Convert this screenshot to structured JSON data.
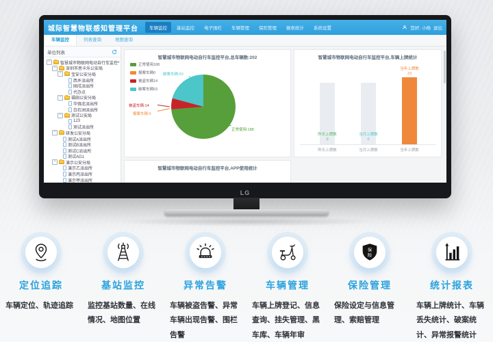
{
  "monitor": {
    "brand": "LG"
  },
  "dashboard": {
    "header": {
      "title": "城际智慧物联感知管理平台",
      "nav": [
        {
          "label": "车辆监控",
          "active": true
        },
        {
          "label": "基站监控",
          "active": false
        },
        {
          "label": "电子围栏",
          "active": false
        },
        {
          "label": "车辆管理",
          "active": false
        },
        {
          "label": "保险管理",
          "active": false
        },
        {
          "label": "报表统计",
          "active": false
        },
        {
          "label": "系统设置",
          "active": false
        }
      ],
      "user_greeting": "您好, 小杨",
      "logout_label": "退出"
    },
    "tabs": [
      {
        "label": "车辆监控",
        "active": true
      },
      {
        "label": "列表查询",
        "active": false
      },
      {
        "label": "地图查询",
        "active": false
      }
    ],
    "sidebar": {
      "title": "单位列表",
      "tree": [
        {
          "label": "智慧城市物联网电动自行车监控平台",
          "level": 0,
          "type": "folder"
        },
        {
          "label": "深圳市思卡乐公安局",
          "level": 1,
          "type": "folder"
        },
        {
          "label": "宝安公安分局",
          "level": 2,
          "type": "folder"
        },
        {
          "label": "西乡派出所",
          "level": 3,
          "type": "leaf"
        },
        {
          "label": "固戍派出所",
          "level": 3,
          "type": "leaf"
        },
        {
          "label": "代办点",
          "level": 3,
          "type": "leaf"
        },
        {
          "label": "福田公安分局",
          "level": 2,
          "type": "folder"
        },
        {
          "label": "华强北派出所",
          "level": 3,
          "type": "leaf"
        },
        {
          "label": "白石洲派出所",
          "level": 3,
          "type": "leaf"
        },
        {
          "label": "测试公安局",
          "level": 2,
          "type": "folder"
        },
        {
          "label": "123",
          "level": 3,
          "type": "leaf"
        },
        {
          "label": "测试派出所",
          "level": 3,
          "type": "leaf"
        },
        {
          "label": "研发公安分局",
          "level": 1,
          "type": "folder"
        },
        {
          "label": "测试A派出所",
          "level": 2,
          "type": "leaf"
        },
        {
          "label": "测试B派出所",
          "level": 2,
          "type": "leaf"
        },
        {
          "label": "测试C派出所",
          "level": 2,
          "type": "leaf"
        },
        {
          "label": "测试AG1",
          "level": 2,
          "type": "leaf"
        },
        {
          "label": "演示公安分局",
          "level": 1,
          "type": "folder"
        },
        {
          "label": "演示乙派出所",
          "level": 2,
          "type": "leaf"
        },
        {
          "label": "演示丙派出所",
          "level": 2,
          "type": "leaf"
        },
        {
          "label": "演示甲派出所",
          "level": 2,
          "type": "leaf"
        }
      ]
    },
    "panels": {
      "app_usage_title": "智慧城市物联网电动自行车监控平台,APP使用统计"
    }
  },
  "chart_data": [
    {
      "type": "pie",
      "title": "智慧城市物联网电动自行车监控平台,总车辆数:202",
      "legend_position": "top-left",
      "legend": [
        "正常使用188",
        "报案车辆0",
        "被盗车辆14",
        "破案车辆53"
      ],
      "series": [
        {
          "name": "正常使用",
          "value": 188,
          "color": "#579f3a",
          "label": "正常使用:188"
        },
        {
          "name": "报案车辆",
          "value": 0,
          "color": "#ef8b33",
          "label": "报案车辆:0"
        },
        {
          "name": "被盗车辆",
          "value": 14,
          "color": "#c9232a",
          "label": "被盗车辆:14"
        },
        {
          "name": "破案车辆",
          "value": 53,
          "color": "#4cc6c8",
          "label": "破案车辆:53"
        }
      ]
    },
    {
      "type": "bar",
      "title": "智慧城市物联网电动自行车监控平台,车辆上牌统计",
      "categories": [
        "昨天上牌数",
        "当月上牌数",
        "当年上牌数"
      ],
      "values": [
        0,
        0,
        23
      ],
      "bar_colors": [
        "#e9edf2",
        "#e9edf2",
        "#f0883c"
      ],
      "label_colors": [
        "#5cb85c",
        "#4cc6c8",
        "#f0883c"
      ],
      "ylim": [
        0,
        25
      ],
      "grid": false
    }
  ],
  "features": [
    {
      "icon": "location-pin",
      "title": "定位追踪",
      "desc": "车辆定位、轨迹追踪"
    },
    {
      "icon": "signal-tower",
      "title": "基站监控",
      "desc": "监控基站数量、在线情况、地图位置"
    },
    {
      "icon": "alarm-siren",
      "title": "异常告警",
      "desc": "车辆被盗告警、异常车辆出现告警、围栏告警"
    },
    {
      "icon": "scooter",
      "title": "车辆管理",
      "desc": "车辆上牌登记、信息查询、挂失管理、黑车库、车辆年审"
    },
    {
      "icon": "insurance-shield",
      "title": "保险管理",
      "desc": "保险设定与信息管理、索赔管理",
      "icon_text": "保险"
    },
    {
      "icon": "bar-chart",
      "title": "统计报表",
      "desc": "车辆上牌统计、车辆丢失统计、破案统计、异常报警统计"
    }
  ]
}
